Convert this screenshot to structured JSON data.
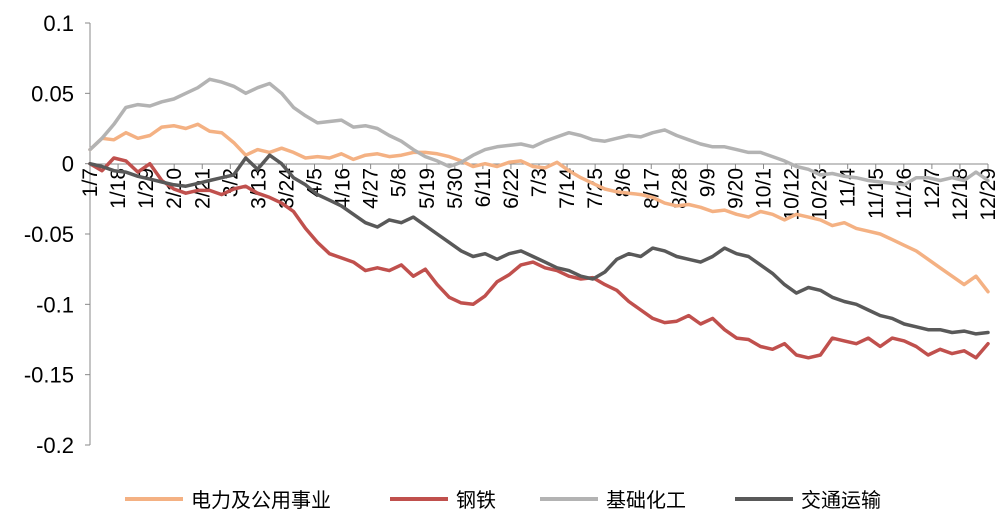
{
  "chart_data": {
    "type": "line",
    "title": "",
    "xlabel": "",
    "ylabel": "",
    "ylim": [
      -0.2,
      0.1
    ],
    "y_ticks": [
      0.1,
      0.05,
      0,
      -0.05,
      -0.1,
      -0.15,
      -0.2
    ],
    "y_tick_labels": [
      "0.1",
      "0.05",
      "0",
      "-0.05",
      "-0.1",
      "-0.15",
      "-0.2"
    ],
    "x_tick_labels": [
      "1/7",
      "1/18",
      "1/29",
      "2/10",
      "2/21",
      "3/2",
      "3/13",
      "3/24",
      "4/5",
      "4/16",
      "4/27",
      "5/8",
      "5/19",
      "5/30",
      "6/11",
      "6/22",
      "7/3",
      "7/14",
      "7/25",
      "8/6",
      "8/17",
      "8/28",
      "9/9",
      "9/20",
      "10/1",
      "10/12",
      "10/23",
      "11/4",
      "11/15",
      "11/26",
      "12/7",
      "12/18",
      "12/29"
    ],
    "legend_position": "bottom",
    "grid": false,
    "series": [
      {
        "name": "电力及公用事业",
        "color": "#F4B183",
        "values": [
          0.01,
          0.018,
          0.017,
          0.022,
          0.018,
          0.02,
          0.026,
          0.027,
          0.025,
          0.028,
          0.023,
          0.022,
          0.015,
          0.006,
          0.01,
          0.008,
          0.011,
          0.008,
          0.004,
          0.005,
          0.004,
          0.007,
          0.003,
          0.006,
          0.007,
          0.005,
          0.006,
          0.008,
          0.008,
          0.007,
          0.005,
          0.002,
          -0.002,
          0.0,
          -0.002,
          0.001,
          0.002,
          -0.002,
          -0.003,
          0.001,
          -0.005,
          -0.01,
          -0.014,
          -0.018,
          -0.02,
          -0.021,
          -0.022,
          -0.024,
          -0.028,
          -0.03,
          -0.029,
          -0.031,
          -0.034,
          -0.033,
          -0.036,
          -0.038,
          -0.034,
          -0.036,
          -0.04,
          -0.036,
          -0.038,
          -0.04,
          -0.044,
          -0.042,
          -0.046,
          -0.048,
          -0.05,
          -0.054,
          -0.058,
          -0.062,
          -0.068,
          -0.074,
          -0.08,
          -0.086,
          -0.08,
          -0.091
        ]
      },
      {
        "name": "钢铁",
        "color": "#C0504D",
        "values": [
          0.0,
          -0.005,
          0.004,
          0.002,
          -0.006,
          0.0,
          -0.012,
          -0.018,
          -0.021,
          -0.019,
          -0.019,
          -0.022,
          -0.018,
          -0.016,
          -0.021,
          -0.024,
          -0.028,
          -0.034,
          -0.046,
          -0.056,
          -0.064,
          -0.067,
          -0.07,
          -0.076,
          -0.074,
          -0.076,
          -0.072,
          -0.08,
          -0.075,
          -0.086,
          -0.095,
          -0.099,
          -0.1,
          -0.094,
          -0.084,
          -0.079,
          -0.072,
          -0.07,
          -0.074,
          -0.076,
          -0.08,
          -0.082,
          -0.081,
          -0.086,
          -0.09,
          -0.098,
          -0.104,
          -0.11,
          -0.113,
          -0.112,
          -0.108,
          -0.114,
          -0.11,
          -0.118,
          -0.124,
          -0.125,
          -0.13,
          -0.132,
          -0.128,
          -0.136,
          -0.138,
          -0.136,
          -0.124,
          -0.126,
          -0.128,
          -0.124,
          -0.13,
          -0.124,
          -0.126,
          -0.13,
          -0.136,
          -0.132,
          -0.135,
          -0.133,
          -0.138,
          -0.128
        ]
      },
      {
        "name": "基础化工",
        "color": "#B3B3B3",
        "values": [
          0.01,
          0.018,
          0.028,
          0.04,
          0.042,
          0.041,
          0.044,
          0.046,
          0.05,
          0.054,
          0.06,
          0.058,
          0.055,
          0.05,
          0.054,
          0.057,
          0.05,
          0.04,
          0.034,
          0.029,
          0.03,
          0.031,
          0.026,
          0.027,
          0.025,
          0.02,
          0.016,
          0.01,
          0.005,
          0.002,
          -0.002,
          0.001,
          0.006,
          0.01,
          0.012,
          0.013,
          0.014,
          0.012,
          0.016,
          0.019,
          0.022,
          0.02,
          0.017,
          0.016,
          0.018,
          0.02,
          0.019,
          0.022,
          0.024,
          0.02,
          0.017,
          0.014,
          0.012,
          0.012,
          0.01,
          0.008,
          0.008,
          0.005,
          0.002,
          -0.002,
          -0.004,
          -0.008,
          -0.007,
          -0.009,
          -0.01,
          -0.012,
          -0.013,
          -0.014,
          -0.015,
          -0.01,
          -0.01,
          -0.012,
          -0.01,
          -0.012,
          -0.006,
          -0.012
        ]
      },
      {
        "name": "交通运输",
        "color": "#595959",
        "values": [
          0.0,
          -0.002,
          -0.005,
          -0.006,
          -0.009,
          -0.011,
          -0.013,
          -0.015,
          -0.016,
          -0.014,
          -0.012,
          -0.01,
          -0.008,
          0.004,
          -0.004,
          0.006,
          0.0,
          -0.01,
          -0.015,
          -0.022,
          -0.026,
          -0.03,
          -0.036,
          -0.042,
          -0.045,
          -0.04,
          -0.042,
          -0.038,
          -0.044,
          -0.05,
          -0.056,
          -0.062,
          -0.066,
          -0.064,
          -0.068,
          -0.064,
          -0.062,
          -0.066,
          -0.07,
          -0.074,
          -0.076,
          -0.08,
          -0.082,
          -0.077,
          -0.068,
          -0.064,
          -0.066,
          -0.06,
          -0.062,
          -0.066,
          -0.068,
          -0.07,
          -0.066,
          -0.06,
          -0.064,
          -0.066,
          -0.072,
          -0.078,
          -0.086,
          -0.092,
          -0.088,
          -0.09,
          -0.095,
          -0.098,
          -0.1,
          -0.104,
          -0.108,
          -0.11,
          -0.114,
          -0.116,
          -0.118,
          -0.118,
          -0.12,
          -0.119,
          -0.121,
          -0.12
        ]
      }
    ]
  }
}
